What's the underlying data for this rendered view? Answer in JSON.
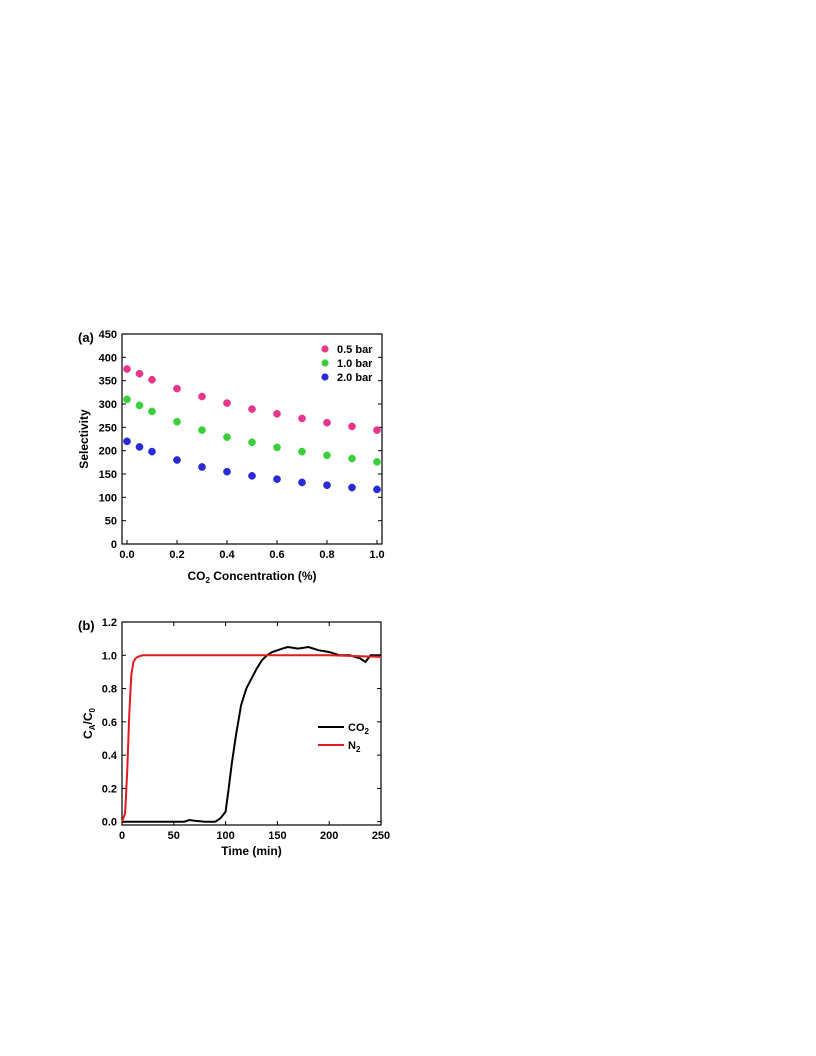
{
  "chart_data": [
    {
      "panel": "(a)",
      "type": "scatter",
      "xlabel": "CO",
      "xlabel_sub": "2",
      "xlabel_rest": " Concentration (%)",
      "ylabel": "Selectivity",
      "xlim": [
        0.0,
        1.0
      ],
      "ylim": [
        0,
        450
      ],
      "xticks": [
        "0.0",
        "0.2",
        "0.4",
        "0.6",
        "0.8",
        "1.0"
      ],
      "yticks": [
        "0",
        "50",
        "100",
        "150",
        "200",
        "250",
        "300",
        "350",
        "400",
        "450"
      ],
      "legend_position": "top-right",
      "series": [
        {
          "name": "0.5 bar",
          "color": "#e6378c",
          "x": [
            0.0,
            0.05,
            0.1,
            0.2,
            0.3,
            0.4,
            0.5,
            0.6,
            0.7,
            0.8,
            0.9,
            1.0
          ],
          "y": [
            375,
            365,
            352,
            333,
            316,
            302,
            289,
            279,
            269,
            260,
            252,
            244
          ]
        },
        {
          "name": "1.0 bar",
          "color": "#3ccf3c",
          "x": [
            0.0,
            0.05,
            0.1,
            0.2,
            0.3,
            0.4,
            0.5,
            0.6,
            0.7,
            0.8,
            0.9,
            1.0
          ],
          "y": [
            310,
            297,
            284,
            262,
            244,
            229,
            218,
            207,
            198,
            190,
            183,
            176
          ]
        },
        {
          "name": "2.0 bar",
          "color": "#2a2ad6",
          "x": [
            0.0,
            0.05,
            0.1,
            0.2,
            0.3,
            0.4,
            0.5,
            0.6,
            0.7,
            0.8,
            0.9,
            1.0
          ],
          "y": [
            220,
            208,
            198,
            180,
            165,
            155,
            146,
            139,
            132,
            126,
            121,
            117
          ]
        }
      ]
    },
    {
      "panel": "(b)",
      "type": "line",
      "xlabel": "Time (min)",
      "ylabel_main": "C",
      "ylabel_sub1": "A",
      "ylabel_mid": "/C",
      "ylabel_sub2": "0",
      "xlim": [
        0,
        250
      ],
      "ylim": [
        -0.02,
        1.2
      ],
      "xticks": [
        "0",
        "50",
        "100",
        "150",
        "200",
        "250"
      ],
      "yticks": [
        "0.0",
        "0.2",
        "0.4",
        "0.6",
        "0.8",
        "1.0",
        "1.2"
      ],
      "legend_position": "center-right",
      "series": [
        {
          "name": "CO",
          "name_sub": "2",
          "color": "#000000",
          "x": [
            0,
            60,
            65,
            70,
            80,
            90,
            95,
            100,
            103,
            106,
            110,
            115,
            120,
            125,
            130,
            135,
            140,
            145,
            150,
            155,
            160,
            170,
            180,
            190,
            200,
            210,
            220,
            230,
            235,
            240,
            250
          ],
          "y": [
            0,
            0,
            0.01,
            0.005,
            0,
            0,
            0.02,
            0.06,
            0.2,
            0.35,
            0.52,
            0.7,
            0.8,
            0.86,
            0.92,
            0.97,
            1.0,
            1.02,
            1.03,
            1.04,
            1.05,
            1.04,
            1.05,
            1.03,
            1.02,
            1.0,
            1.0,
            0.98,
            0.96,
            1.0,
            1.0
          ]
        },
        {
          "name": "N",
          "name_sub": "2",
          "color": "#e31a1c",
          "x": [
            0,
            3,
            5,
            7,
            9,
            11,
            13,
            15,
            20,
            30,
            50,
            100,
            150,
            200,
            250
          ],
          "y": [
            0,
            0.05,
            0.3,
            0.65,
            0.88,
            0.96,
            0.98,
            0.99,
            1.0,
            1.0,
            1.0,
            1.0,
            1.0,
            1.0,
            0.99
          ]
        }
      ]
    }
  ]
}
